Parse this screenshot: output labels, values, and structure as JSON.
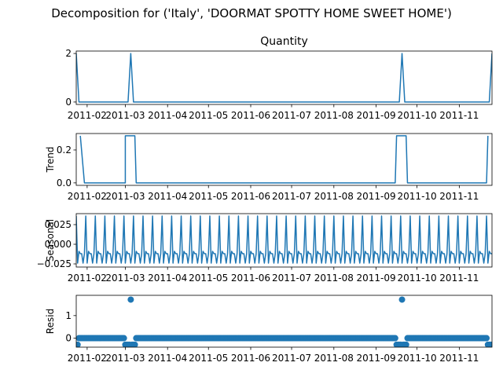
{
  "suptitle": "Decomposition for ('Italy', 'DOORMAT SPOTTY HOME SWEET HOME')",
  "line_color": "#1f77b4",
  "chart_data": [
    {
      "panel": "observed",
      "type": "line",
      "title": "Quantity",
      "ylabel": "",
      "xlim": [
        "2011-01-24",
        "2011-11-25"
      ],
      "ylim": [
        -0.1,
        2.1
      ],
      "yticks": [
        0,
        2
      ],
      "ytick_labels": [
        "0",
        "2"
      ],
      "xticks": [
        "2011-02-01",
        "2011-03-01",
        "2011-04-01",
        "2011-05-01",
        "2011-06-01",
        "2011-07-01",
        "2011-08-01",
        "2011-09-01",
        "2011-10-01",
        "2011-11-01"
      ],
      "xtick_labels": [
        "2011-02",
        "2011-03",
        "2011-04",
        "2011-05",
        "2011-06",
        "2011-07",
        "2011-08",
        "2011-09",
        "2011-10",
        "2011-11"
      ],
      "points": [
        [
          "2011-01-24",
          2
        ],
        [
          "2011-01-26",
          0
        ],
        [
          "2011-03-03",
          0
        ],
        [
          "2011-03-05",
          2
        ],
        [
          "2011-03-07",
          0
        ],
        [
          "2011-09-18",
          0
        ],
        [
          "2011-09-20",
          2
        ],
        [
          "2011-09-22",
          0
        ],
        [
          "2011-11-23",
          0
        ],
        [
          "2011-11-25",
          2
        ]
      ]
    },
    {
      "panel": "trend",
      "type": "line",
      "title": "",
      "ylabel": "Trend",
      "xlim": [
        "2011-01-24",
        "2011-11-25"
      ],
      "ylim": [
        -0.015,
        0.3
      ],
      "yticks": [
        0,
        0.2
      ],
      "ytick_labels": [
        "0.0",
        "0.2"
      ],
      "xticks": [
        "2011-02-01",
        "2011-03-01",
        "2011-04-01",
        "2011-05-01",
        "2011-06-01",
        "2011-07-01",
        "2011-08-01",
        "2011-09-01",
        "2011-10-01",
        "2011-11-01"
      ],
      "xtick_labels": [
        "2011-02",
        "2011-03",
        "2011-04",
        "2011-05",
        "2011-06",
        "2011-07",
        "2011-08",
        "2011-09",
        "2011-10",
        "2011-11"
      ],
      "points": [
        [
          "2011-01-27",
          0.286
        ],
        [
          "2011-01-30",
          0
        ],
        [
          "2011-03-01",
          0
        ],
        [
          "2011-03-01",
          0.286
        ],
        [
          "2011-03-08",
          0.286
        ],
        [
          "2011-03-09",
          0
        ],
        [
          "2011-09-15",
          0
        ],
        [
          "2011-09-16",
          0.286
        ],
        [
          "2011-09-23",
          0.286
        ],
        [
          "2011-09-24",
          0
        ],
        [
          "2011-11-21",
          0
        ],
        [
          "2011-11-22",
          0.286
        ]
      ]
    },
    {
      "panel": "seasonal",
      "type": "line",
      "title": "",
      "ylabel": "Seasonal",
      "xlim": [
        "2011-01-24",
        "2011-11-25"
      ],
      "ylim": [
        -0.029,
        0.039
      ],
      "yticks": [
        -0.025,
        0,
        0.025
      ],
      "ytick_labels": [
        "−0.025",
        "0.000",
        "0.025"
      ],
      "xticks": [
        "2011-02-01",
        "2011-03-01",
        "2011-04-01",
        "2011-05-01",
        "2011-06-01",
        "2011-07-01",
        "2011-08-01",
        "2011-09-01",
        "2011-10-01",
        "2011-11-01"
      ],
      "xtick_labels": [
        "2011-02",
        "2011-03",
        "2011-04",
        "2011-05",
        "2011-06",
        "2011-07",
        "2011-08",
        "2011-09",
        "2011-10",
        "2011-11"
      ],
      "period_days": 7,
      "pattern": [
        0.036,
        -0.024,
        -0.009,
        -0.012,
        -0.012,
        -0.024,
        -0.012
      ],
      "start": "2011-01-24",
      "end": "2011-11-25"
    },
    {
      "panel": "resid",
      "type": "scatter",
      "title": "",
      "ylabel": "Resid",
      "xlim": [
        "2011-01-24",
        "2011-11-25"
      ],
      "ylim": [
        -0.4,
        1.9
      ],
      "yticks": [
        0,
        1
      ],
      "ytick_labels": [
        "0",
        "1"
      ],
      "xticks": [
        "2011-02-01",
        "2011-03-01",
        "2011-04-01",
        "2011-05-01",
        "2011-06-01",
        "2011-07-01",
        "2011-08-01",
        "2011-09-01",
        "2011-10-01",
        "2011-11-01"
      ],
      "xtick_labels": [
        "2011-02",
        "2011-03",
        "2011-04",
        "2011-05",
        "2011-06",
        "2011-07",
        "2011-08",
        "2011-09",
        "2011-10",
        "2011-11"
      ],
      "start": "2011-01-24",
      "end": "2011-11-25",
      "baseline": 0,
      "special_points": [
        [
          "2011-01-24",
          -0.29
        ],
        [
          "2011-01-25",
          -0.29
        ],
        [
          "2011-03-01",
          -0.29
        ],
        [
          "2011-03-02",
          -0.29
        ],
        [
          "2011-03-03",
          -0.29
        ],
        [
          "2011-03-04",
          -0.29
        ],
        [
          "2011-03-05",
          1.71
        ],
        [
          "2011-03-06",
          -0.29
        ],
        [
          "2011-03-07",
          -0.29
        ],
        [
          "2011-03-08",
          -0.29
        ],
        [
          "2011-09-16",
          -0.29
        ],
        [
          "2011-09-17",
          -0.29
        ],
        [
          "2011-09-18",
          -0.29
        ],
        [
          "2011-09-19",
          -0.29
        ],
        [
          "2011-09-20",
          1.71
        ],
        [
          "2011-09-21",
          -0.29
        ],
        [
          "2011-09-22",
          -0.29
        ],
        [
          "2011-09-23",
          -0.29
        ],
        [
          "2011-11-22",
          -0.29
        ],
        [
          "2011-11-23",
          -0.29
        ],
        [
          "2011-11-24",
          -0.29
        ],
        [
          "2011-11-25",
          -0.29
        ]
      ]
    }
  ]
}
